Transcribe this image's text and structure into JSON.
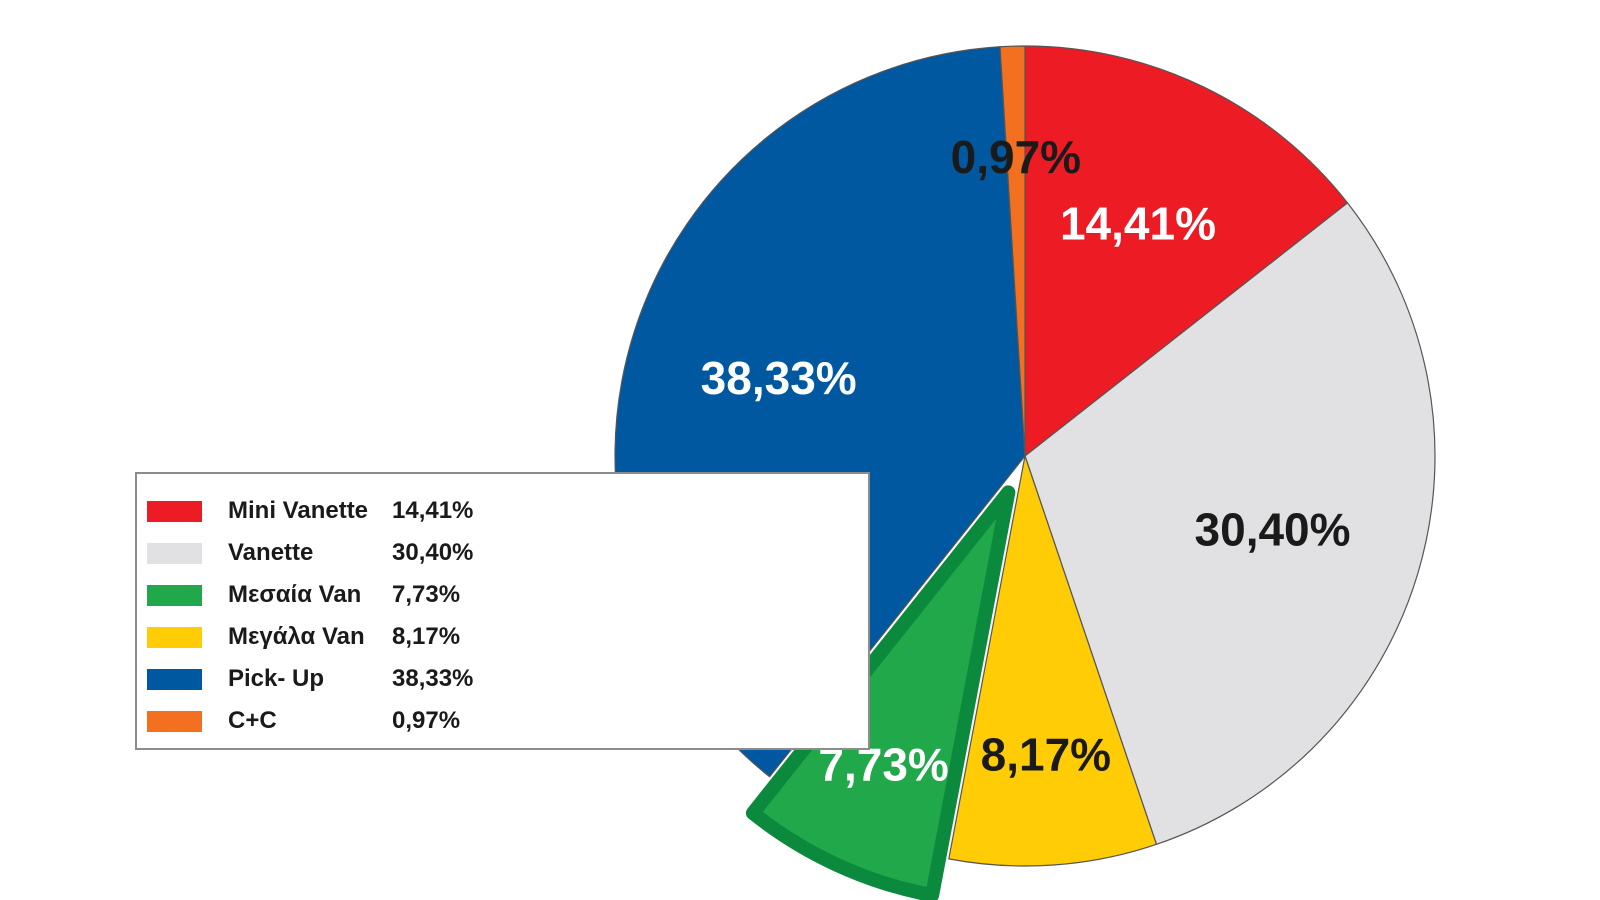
{
  "chart_data": {
    "type": "pie",
    "categories": [
      "Mini Vanette",
      "Vanette",
      "Μεγάλα Van",
      "Μεσαία Van",
      "Pick- Up",
      "C+C"
    ],
    "values": [
      14.41,
      30.4,
      8.17,
      7.73,
      38.33,
      0.97
    ],
    "labels": [
      "14,41%",
      "30,40%",
      "8,17%",
      "7,73%",
      "38,33%",
      "0,97%"
    ],
    "colors": [
      "#ed1c24",
      "#e1e1e3",
      "#ffcc05",
      "#21a84a",
      "#0058a0",
      "#f37021"
    ],
    "label_colors": [
      "#ffffff",
      "#1a1a1a",
      "#1a1a1a",
      "#ffffff",
      "#ffffff",
      "#1a1a1a"
    ],
    "exploded": "Μεσαία Van",
    "start": "top, clockwise",
    "legend": {
      "placement": "left",
      "items": [
        {
          "name": "Mini Vanette",
          "value": "14,41%",
          "color": "#ed1c24"
        },
        {
          "name": "Vanette",
          "value": "30,40%",
          "color": "#e1e1e3"
        },
        {
          "name": "Μεσαία Van",
          "value": "7,73%",
          "color": "#21a84a"
        },
        {
          "name": "Μεγάλα Van",
          "value": "8,17%",
          "color": "#ffcc05"
        },
        {
          "name": "Pick- Up",
          "value": "38,33%",
          "color": "#0058a0"
        },
        {
          "name": "C+C",
          "value": "0,97%",
          "color": "#f37021"
        }
      ]
    }
  }
}
